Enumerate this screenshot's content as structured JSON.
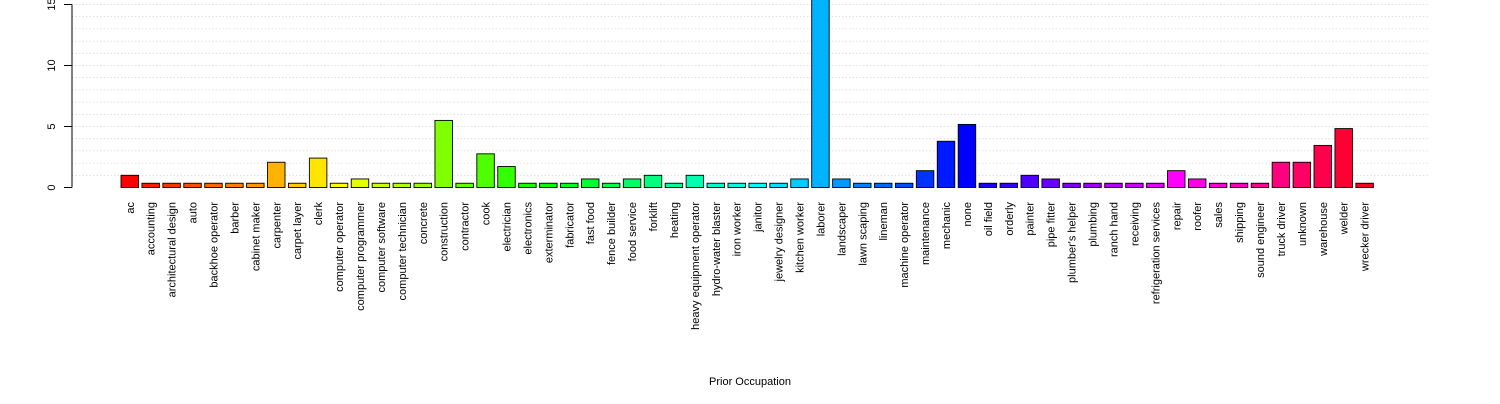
{
  "chart_data": {
    "type": "bar",
    "title": "",
    "xlabel": "Prior Occupation",
    "ylabel": "",
    "ylim": [
      0,
      16.5
    ],
    "yticks": [
      0,
      5,
      10,
      15
    ],
    "ytick_labels": [
      "0",
      "5",
      "10",
      "15"
    ],
    "grid": true,
    "grid_style": "dotted horizontal",
    "categories": [
      "ac",
      "accounting",
      "architectural design",
      "auto",
      "backhoe operator",
      "barber",
      "cabinet maker",
      "carpenter",
      "carpet layer",
      "clerk",
      "computer operator",
      "computer programmer",
      "computer software",
      "computer technician",
      "concrete",
      "construction",
      "contractor",
      "cook",
      "electrician",
      "electronics",
      "exterminator",
      "fabricator",
      "fast food",
      "fence builder",
      "food service",
      "forklift",
      "heating",
      "heavy equipment operator",
      "hydro-water blaster",
      "iron worker",
      "janitor",
      "jewelry designer",
      "kitchen worker",
      "laborer",
      "landscaper",
      "lawn scaping",
      "lineman",
      "machine operator",
      "maintenance",
      "mechanic",
      "none",
      "oil field",
      "orderly",
      "painter",
      "pipe fitter",
      "plumber's helper",
      "plumbing",
      "ranch hand",
      "receiving",
      "refrigeration services",
      "repair",
      "roofer",
      "sales",
      "shipping",
      "sound engineer",
      "truck driver",
      "unknown",
      "warehouse",
      "welder",
      "wrecker driver"
    ],
    "values": [
      1.0,
      0.35,
      0.35,
      0.35,
      0.35,
      0.35,
      0.35,
      2.07,
      0.35,
      2.41,
      0.35,
      0.7,
      0.35,
      0.35,
      0.35,
      5.5,
      0.35,
      2.76,
      1.72,
      0.35,
      0.35,
      0.35,
      0.7,
      0.35,
      0.7,
      1.0,
      0.35,
      1.0,
      0.35,
      0.35,
      0.35,
      0.35,
      0.7,
      17.0,
      0.7,
      0.35,
      0.35,
      0.35,
      1.38,
      3.79,
      5.17,
      0.35,
      0.35,
      1.0,
      0.7,
      0.35,
      0.35,
      0.35,
      0.35,
      0.35,
      1.38,
      0.7,
      0.35,
      0.35,
      0.35,
      2.07,
      2.07,
      3.45,
      4.83,
      0.35
    ],
    "colors": [
      "#FF0000",
      "#FF1A00",
      "#FF3300",
      "#FF4D00",
      "#FF6600",
      "#FF8000",
      "#FF9900",
      "#FFB300",
      "#FFCC00",
      "#FFE500",
      "#FFFF00",
      "#E5FF00",
      "#CCFF00",
      "#B3FF00",
      "#99FF00",
      "#80FF00",
      "#66FF00",
      "#4DFF00",
      "#33FF00",
      "#1AFF00",
      "#00FF00",
      "#00FF1A",
      "#00FF33",
      "#00FF4D",
      "#00FF66",
      "#00FF80",
      "#00FF99",
      "#00FFB3",
      "#00FFCC",
      "#00FFE5",
      "#00FFFF",
      "#00E5FF",
      "#00CCFF",
      "#00B3FF",
      "#0099FF",
      "#0080FF",
      "#0066FF",
      "#004DFF",
      "#0033FF",
      "#001AFF",
      "#0000FF",
      "#1A00FF",
      "#3300FF",
      "#4D00FF",
      "#6600FF",
      "#8000FF",
      "#9900FF",
      "#B300FF",
      "#CC00FF",
      "#E500FF",
      "#FF00FF",
      "#FF00E5",
      "#FF00CC",
      "#FF00B3",
      "#FF0099",
      "#FF0080",
      "#FF0066",
      "#FF004D",
      "#FF0033",
      "#FF001A"
    ]
  }
}
